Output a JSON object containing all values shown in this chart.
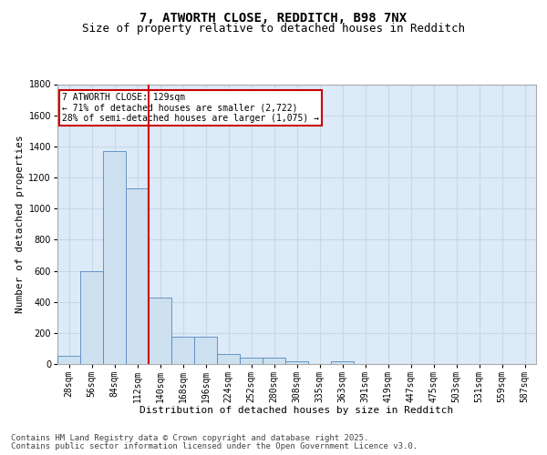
{
  "title1": "7, ATWORTH CLOSE, REDDITCH, B98 7NX",
  "title2": "Size of property relative to detached houses in Redditch",
  "xlabel": "Distribution of detached houses by size in Redditch",
  "ylabel": "Number of detached properties",
  "categories": [
    "28sqm",
    "56sqm",
    "84sqm",
    "112sqm",
    "140sqm",
    "168sqm",
    "196sqm",
    "224sqm",
    "252sqm",
    "280sqm",
    "308sqm",
    "335sqm",
    "363sqm",
    "391sqm",
    "419sqm",
    "447sqm",
    "475sqm",
    "503sqm",
    "531sqm",
    "559sqm",
    "587sqm"
  ],
  "values": [
    55,
    600,
    1370,
    1130,
    430,
    175,
    175,
    65,
    40,
    40,
    15,
    0,
    15,
    0,
    0,
    0,
    0,
    0,
    0,
    0,
    0
  ],
  "bar_color": "#cce0f0",
  "bar_edge_color": "#5588bb",
  "vline_color": "#cc0000",
  "annotation_text": "7 ATWORTH CLOSE: 129sqm\n← 71% of detached houses are smaller (2,722)\n28% of semi-detached houses are larger (1,075) →",
  "annotation_box_color": "#cc0000",
  "annotation_bg": "#ffffff",
  "ylim": [
    0,
    1800
  ],
  "yticks": [
    0,
    200,
    400,
    600,
    800,
    1000,
    1200,
    1400,
    1600,
    1800
  ],
  "grid_color": "#c8d8e8",
  "background_color": "#ddeaf8",
  "footer_line1": "Contains HM Land Registry data © Crown copyright and database right 2025.",
  "footer_line2": "Contains public sector information licensed under the Open Government Licence v3.0.",
  "title1_fontsize": 10,
  "title2_fontsize": 9,
  "xlabel_fontsize": 8,
  "ylabel_fontsize": 8,
  "tick_fontsize": 7,
  "footer_fontsize": 6.5
}
